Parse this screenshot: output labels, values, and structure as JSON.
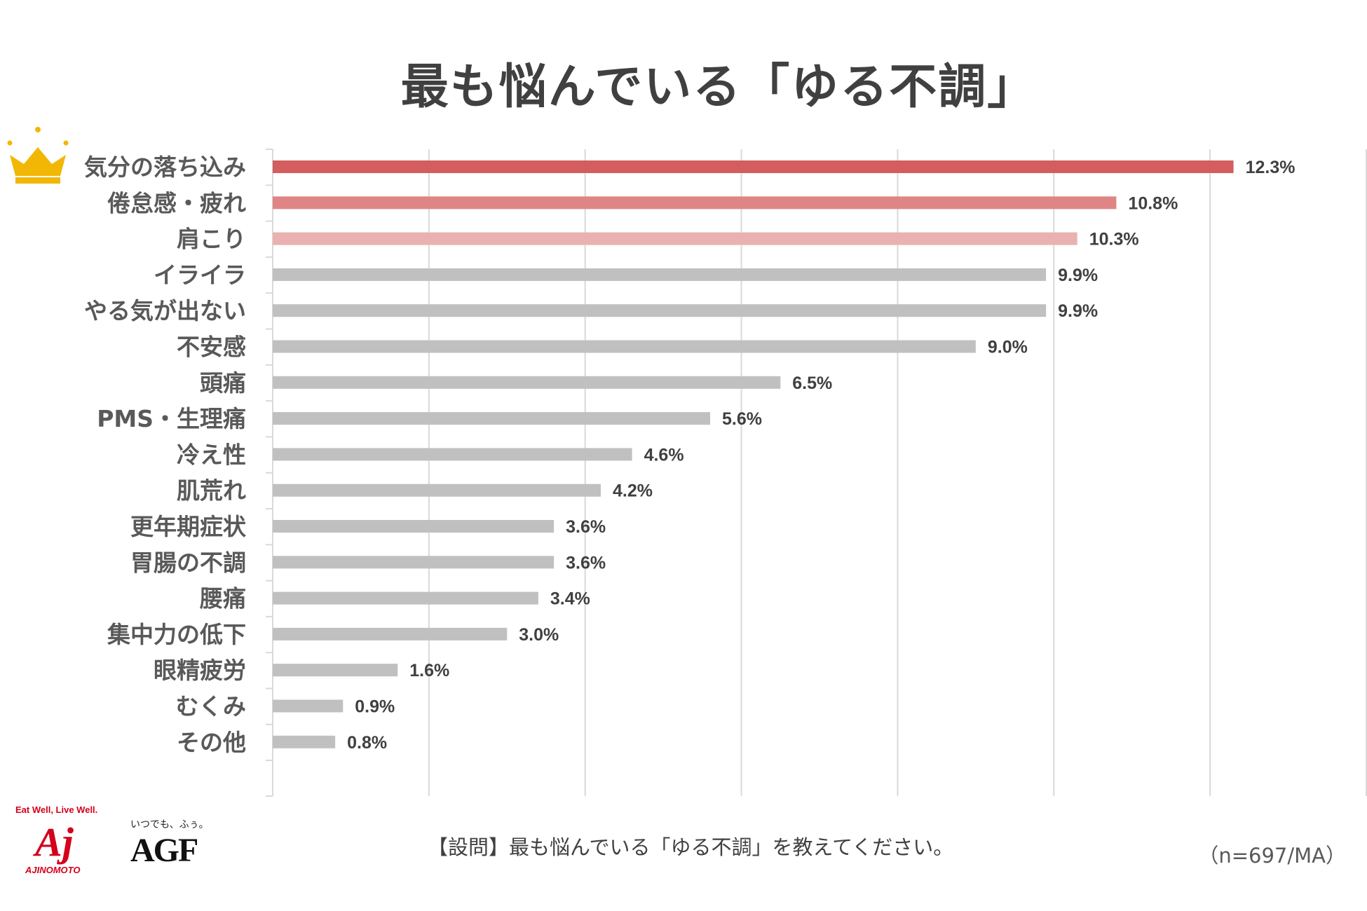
{
  "chart_data": {
    "type": "bar",
    "orientation": "horizontal",
    "title": "最も悩んでいる「ゆる不調」",
    "categories": [
      "気分の落ち込み",
      "倦怠感・疲れ",
      "肩こり",
      "イライラ",
      "やる気が出ない",
      "不安感",
      "頭痛",
      "PMS・生理痛",
      "冷え性",
      "肌荒れ",
      "更年期症状",
      "胃腸の不調",
      "腰痛",
      "集中力の低下",
      "眼精疲労",
      "むくみ",
      "その他"
    ],
    "values": [
      12.3,
      10.8,
      10.3,
      9.9,
      9.9,
      9.0,
      6.5,
      5.6,
      4.6,
      4.2,
      3.6,
      3.6,
      3.4,
      3.0,
      1.6,
      0.9,
      0.8
    ],
    "value_labels": [
      "12.3%",
      "10.8%",
      "10.3%",
      "9.9%",
      "9.9%",
      "9.0%",
      "6.5%",
      "5.6%",
      "4.6%",
      "4.2%",
      "3.6%",
      "3.6%",
      "3.4%",
      "3.0%",
      "1.6%",
      "0.9%",
      "0.8%"
    ],
    "bar_colors": [
      "#d45d5d",
      "#e08585",
      "#eab1b1",
      "#c0c0c0",
      "#c0c0c0",
      "#c0c0c0",
      "#c0c0c0",
      "#c0c0c0",
      "#c0c0c0",
      "#c0c0c0",
      "#c0c0c0",
      "#c0c0c0",
      "#c0c0c0",
      "#c0c0c0",
      "#c0c0c0",
      "#c0c0c0",
      "#c0c0c0"
    ],
    "xlim": [
      0,
      14
    ],
    "grid": true,
    "highlight_icon": "crown-icon"
  },
  "footer": {
    "question": "【設問】最も悩んでいる「ゆる不調」を教えてください。",
    "sample": "（n=697/MA）"
  },
  "logos": {
    "ajinomoto_tagline": "Eat Well, Live Well.",
    "ajinomoto_mark": "Aj",
    "ajinomoto_word": "AJINOMOTO",
    "agf_tagline": "いつでも、ふぅ。",
    "agf_mark": "AGF"
  },
  "colors": {
    "crown": "#f2b705",
    "grid": "#d9d9d9",
    "text": "#404040"
  }
}
